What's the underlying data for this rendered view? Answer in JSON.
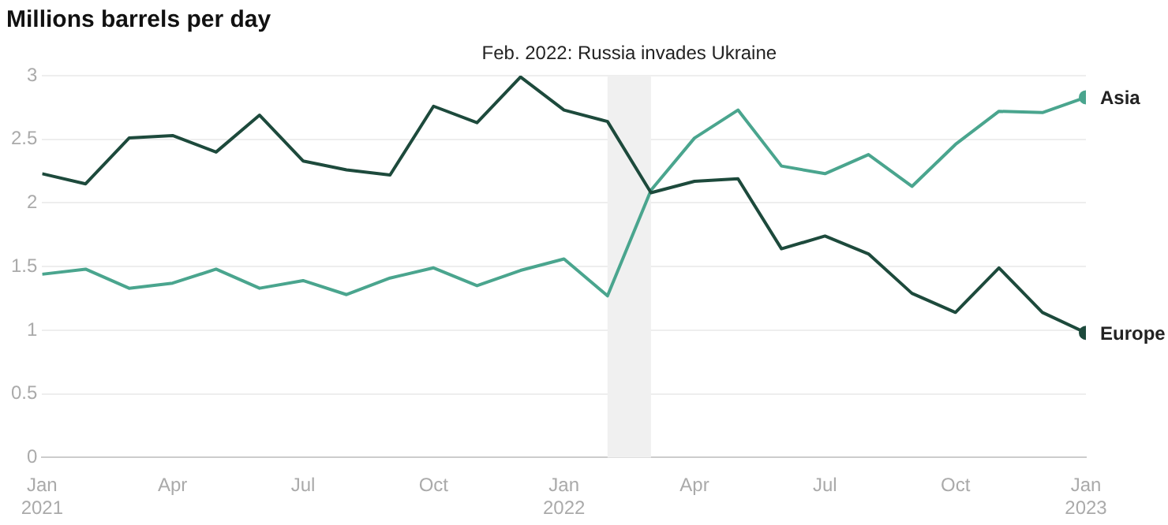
{
  "chart_data": {
    "type": "line",
    "title": "Millions barrels per day",
    "x": [
      "2021-01",
      "2021-02",
      "2021-03",
      "2021-04",
      "2021-05",
      "2021-06",
      "2021-07",
      "2021-08",
      "2021-09",
      "2021-10",
      "2021-11",
      "2021-12",
      "2022-01",
      "2022-02",
      "2022-03",
      "2022-04",
      "2022-05",
      "2022-06",
      "2022-07",
      "2022-08",
      "2022-09",
      "2022-10",
      "2022-11",
      "2022-12",
      "2023-01"
    ],
    "series": [
      {
        "name": "Europe",
        "color": "#1d4a3c",
        "values": [
          2.23,
          2.15,
          2.51,
          2.53,
          2.4,
          2.69,
          2.33,
          2.26,
          2.22,
          2.76,
          2.63,
          2.99,
          2.73,
          2.64,
          2.08,
          2.17,
          2.19,
          1.64,
          1.74,
          1.6,
          1.29,
          1.14,
          1.49,
          1.14,
          0.98
        ]
      },
      {
        "name": "Asia",
        "color": "#4aa58e",
        "values": [
          1.44,
          1.48,
          1.33,
          1.37,
          1.48,
          1.33,
          1.39,
          1.28,
          1.41,
          1.49,
          1.35,
          1.47,
          1.56,
          1.27,
          2.1,
          2.51,
          2.73,
          2.29,
          2.23,
          2.38,
          2.13,
          2.46,
          2.72,
          2.71,
          2.83
        ]
      }
    ],
    "xlim": [
      "2021-01",
      "2023-01"
    ],
    "xticks": [
      {
        "value": "2021-01",
        "label": "Jan 2021"
      },
      {
        "value": "2021-04",
        "label": "Apr"
      },
      {
        "value": "2021-07",
        "label": "Jul"
      },
      {
        "value": "2021-10",
        "label": "Oct"
      },
      {
        "value": "2022-01",
        "label": "Jan 2022"
      },
      {
        "value": "2022-04",
        "label": "Apr"
      },
      {
        "value": "2022-07",
        "label": "Jul"
      },
      {
        "value": "2022-10",
        "label": "Oct"
      },
      {
        "value": "2023-01",
        "label": "Jan 2023"
      }
    ],
    "ylim": [
      0,
      3
    ],
    "yticks": [
      0,
      0.5,
      1,
      1.5,
      2,
      2.5,
      3
    ],
    "grid": "y",
    "legend": false,
    "line_style": "solid",
    "bands": [
      {
        "axis": "x",
        "from": "2022-02",
        "to": "2022-03",
        "label": "Feb. 2022: Russia invades Ukraine",
        "color": "#f0f0f0"
      }
    ]
  }
}
